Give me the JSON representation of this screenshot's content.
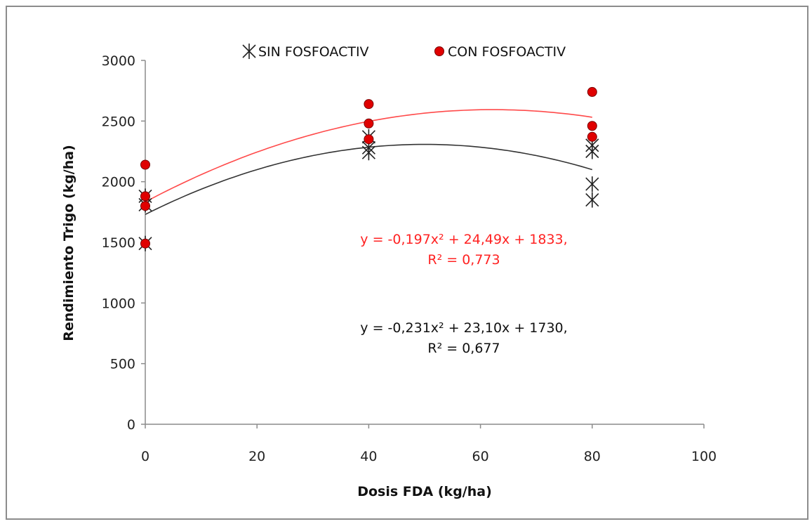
{
  "chart_data": {
    "type": "scatter",
    "title": "",
    "xlabel": "Dosis FDA (kg/ha)",
    "ylabel": "Rendimiento Trigo (kg/ha)",
    "xlim": [
      0,
      100
    ],
    "ylim": [
      0,
      3000
    ],
    "x_ticks": [
      "0",
      "20",
      "40",
      "60",
      "80",
      "100"
    ],
    "y_ticks": [
      "0",
      "500",
      "1000",
      "1500",
      "2000",
      "2500",
      "3000"
    ],
    "grid": false,
    "legend_position": "top",
    "series": [
      {
        "name": "SIN FOSFOACTIV",
        "marker": "asterisk",
        "color": "#222222",
        "points": [
          {
            "x": 0,
            "y": 1490
          },
          {
            "x": 0,
            "y": 1810
          },
          {
            "x": 0,
            "y": 1880
          },
          {
            "x": 40,
            "y": 2240
          },
          {
            "x": 40,
            "y": 2280
          },
          {
            "x": 40,
            "y": 2370
          },
          {
            "x": 80,
            "y": 1850
          },
          {
            "x": 80,
            "y": 1980
          },
          {
            "x": 80,
            "y": 2250
          },
          {
            "x": 80,
            "y": 2300
          }
        ],
        "fit": {
          "a": -0.231,
          "b": 23.1,
          "c": 1730,
          "color": "#333333"
        },
        "equation": {
          "line1": "y = -0,231x² + 23,10x + 1730,",
          "line2": "R² = 0,677",
          "color": "#111111"
        }
      },
      {
        "name": "CON FOSFOACTIV",
        "marker": "circle",
        "color": "#e00000",
        "points": [
          {
            "x": 0,
            "y": 1490
          },
          {
            "x": 0,
            "y": 1800
          },
          {
            "x": 0,
            "y": 1880
          },
          {
            "x": 0,
            "y": 2140
          },
          {
            "x": 40,
            "y": 2350
          },
          {
            "x": 40,
            "y": 2480
          },
          {
            "x": 40,
            "y": 2640
          },
          {
            "x": 80,
            "y": 2370
          },
          {
            "x": 80,
            "y": 2460
          },
          {
            "x": 80,
            "y": 2740
          }
        ],
        "fit": {
          "a": -0.197,
          "b": 24.49,
          "c": 1833,
          "color": "#ff4a4a"
        },
        "equation": {
          "line1": "y = -0,197x² + 24,49x + 1833,",
          "line2": "R² = 0,773",
          "color": "#ff2222"
        }
      }
    ]
  }
}
